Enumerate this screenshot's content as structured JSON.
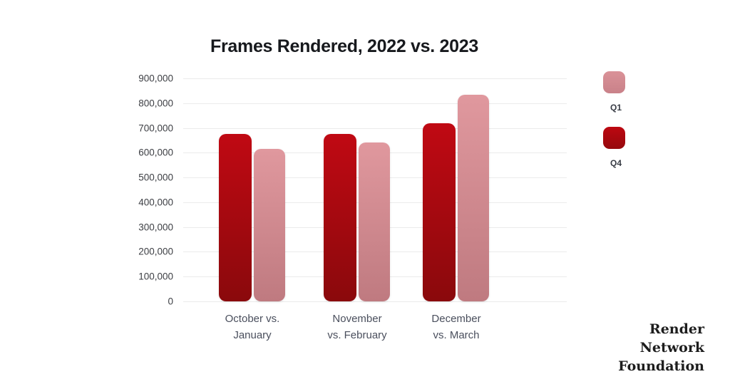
{
  "chart_data": {
    "type": "bar",
    "title": "Frames Rendered, 2022 vs. 2023",
    "categories": [
      "October vs. January",
      "November vs. February",
      "December vs. March"
    ],
    "category_lines": [
      [
        "October vs.",
        "January"
      ],
      [
        "November",
        "vs. February"
      ],
      [
        "December",
        "vs. March"
      ]
    ],
    "series": [
      {
        "name": "Q4",
        "values": [
          675000,
          675000,
          720000
        ],
        "gradient_top": "#c00913",
        "gradient_bottom": "#8a090c"
      },
      {
        "name": "Q1",
        "values": [
          615000,
          640000,
          835000
        ],
        "gradient_top": "#e0989e",
        "gradient_bottom": "#bf7a80"
      }
    ],
    "ylim": [
      0,
      900000
    ],
    "ytick_labels": [
      "900,000",
      "800,000",
      "700,000",
      "600,000",
      "500,000",
      "400,000",
      "300,000",
      "200,000",
      "100,000",
      "0"
    ],
    "grid": true,
    "legend_position": "right",
    "legend": [
      {
        "label": "Q1",
        "swatch_top": "#da9298",
        "swatch_bottom": "#c98189"
      },
      {
        "label": "Q4",
        "swatch_top": "#bd0811",
        "swatch_bottom": "#96090d"
      }
    ],
    "colors": {
      "tick_label": "#3d3f44",
      "category_label": "#4a4f5d",
      "gridline": "#ebebeb",
      "title": "#17191d"
    }
  },
  "footer": {
    "lines": [
      "Render",
      "Network",
      "Foundation"
    ]
  }
}
